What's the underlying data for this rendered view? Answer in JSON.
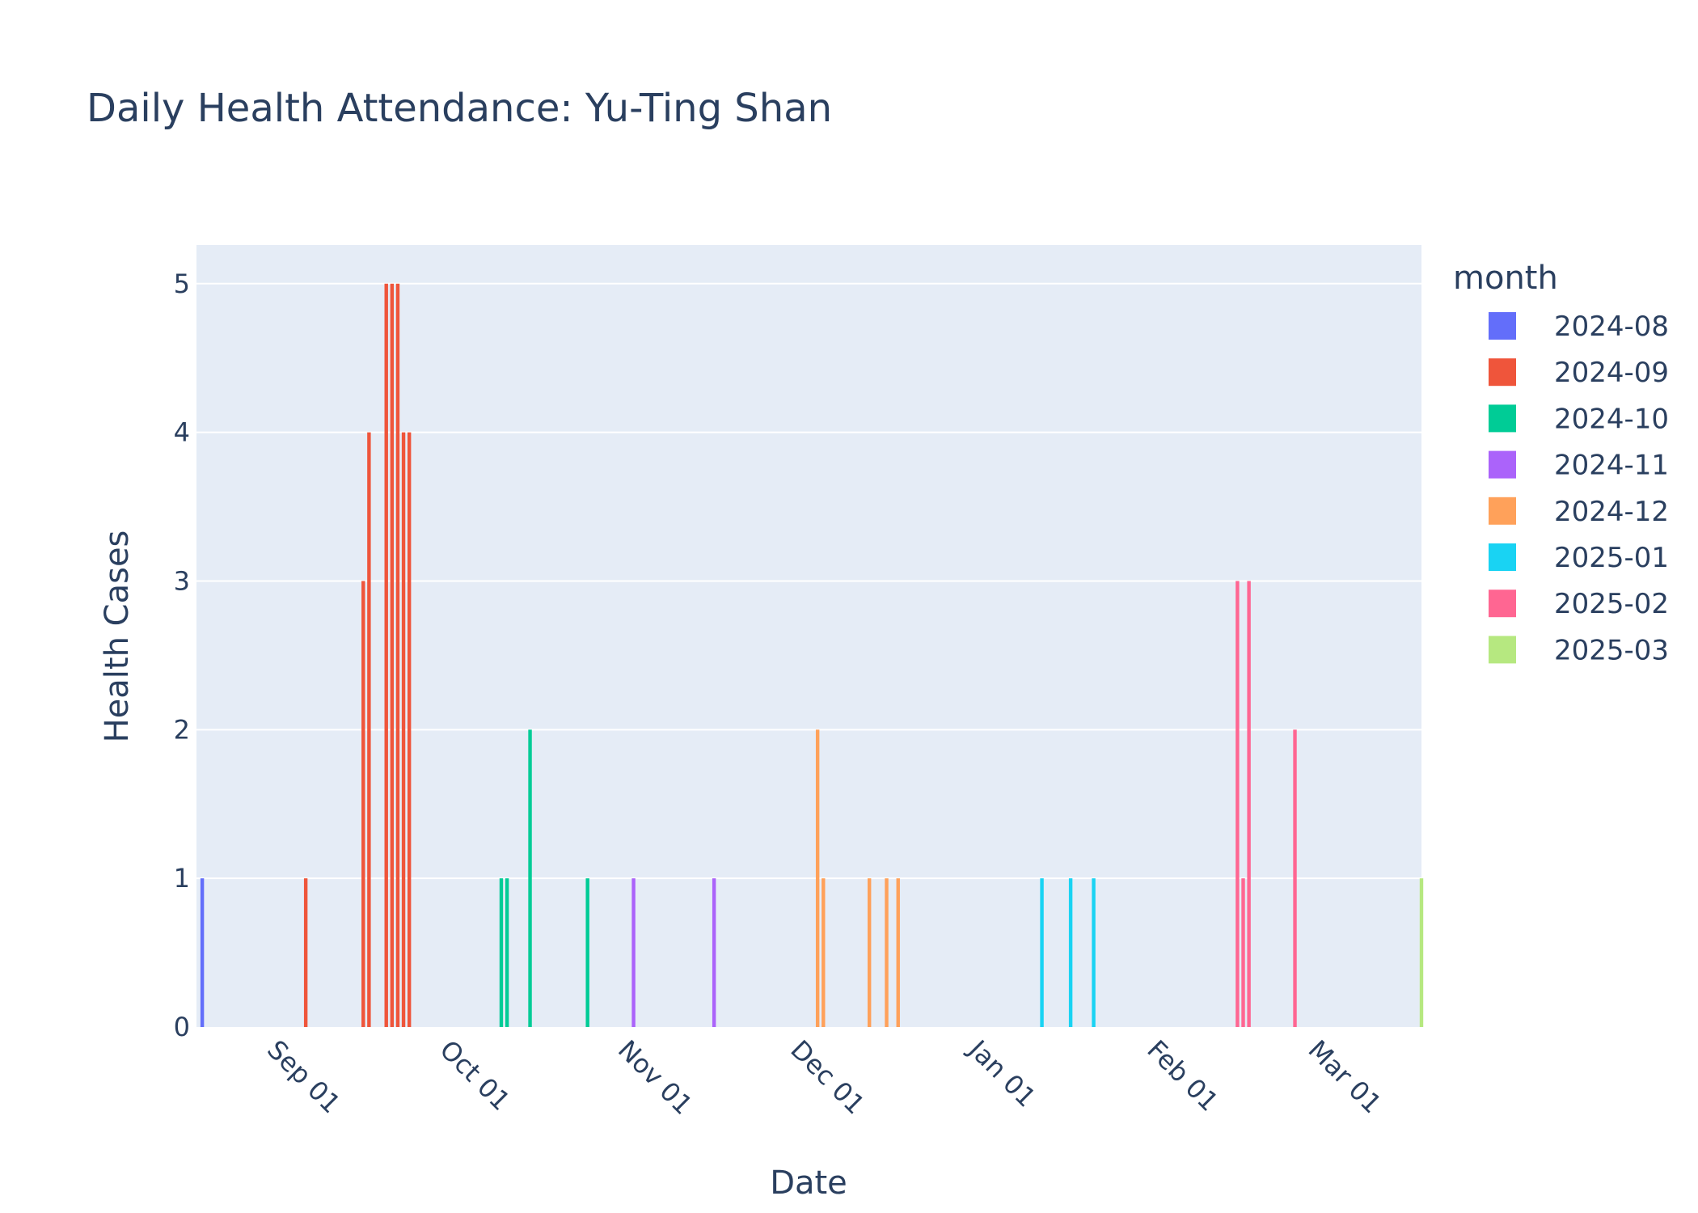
{
  "chart_data": {
    "type": "bar",
    "title": "Daily Health Attendance: Yu-Ting Shan",
    "xlabel": "Date",
    "ylabel": "Health Cases",
    "xlim": [
      "2024-08-16",
      "2025-03-17"
    ],
    "ylim": [
      0,
      5.26
    ],
    "y_ticks": [
      0,
      1,
      2,
      3,
      4,
      5
    ],
    "x_ticks": [
      {
        "date": "2024-09-01",
        "label": "Sep 01"
      },
      {
        "date": "2024-10-01",
        "label": "Oct 01"
      },
      {
        "date": "2024-11-01",
        "label": "Nov 01"
      },
      {
        "date": "2024-12-01",
        "label": "Dec 01"
      },
      {
        "date": "2025-01-01",
        "label": "Jan 01"
      },
      {
        "date": "2025-02-01",
        "label": "Feb 01"
      },
      {
        "date": "2025-03-01",
        "label": "Mar 01"
      }
    ],
    "grid": true,
    "legend": {
      "title": "month",
      "placement": "right"
    },
    "series": [
      {
        "name": "2024-08",
        "color": "#636efa",
        "points": [
          [
            "2024-08-17",
            1
          ]
        ]
      },
      {
        "name": "2024-09",
        "color": "#EF553B",
        "points": [
          [
            "2024-09-04",
            1
          ],
          [
            "2024-09-14",
            3
          ],
          [
            "2024-09-15",
            4
          ],
          [
            "2024-09-18",
            5
          ],
          [
            "2024-09-19",
            5
          ],
          [
            "2024-09-20",
            5
          ],
          [
            "2024-09-21",
            4
          ],
          [
            "2024-09-22",
            4
          ]
        ]
      },
      {
        "name": "2024-10",
        "color": "#00cc96",
        "points": [
          [
            "2024-10-08",
            1
          ],
          [
            "2024-10-09",
            1
          ],
          [
            "2024-10-13",
            2
          ],
          [
            "2024-10-23",
            1
          ]
        ]
      },
      {
        "name": "2024-11",
        "color": "#ab63fa",
        "points": [
          [
            "2024-10-31",
            1
          ],
          [
            "2024-11-14",
            1
          ]
        ]
      },
      {
        "name": "2024-12",
        "color": "#FFA15A",
        "points": [
          [
            "2024-12-02",
            2
          ],
          [
            "2024-12-03",
            1
          ],
          [
            "2024-12-11",
            1
          ],
          [
            "2024-12-14",
            1
          ],
          [
            "2024-12-16",
            1
          ]
        ]
      },
      {
        "name": "2025-01",
        "color": "#19d3f3",
        "points": [
          [
            "2025-01-10",
            1
          ],
          [
            "2025-01-15",
            1
          ],
          [
            "2025-01-19",
            1
          ]
        ]
      },
      {
        "name": "2025-02",
        "color": "#FF6692",
        "points": [
          [
            "2025-02-13",
            3
          ],
          [
            "2025-02-14",
            1
          ],
          [
            "2025-02-15",
            3
          ],
          [
            "2025-02-23",
            2
          ]
        ]
      },
      {
        "name": "2025-03",
        "color": "#B6E880",
        "points": [
          [
            "2025-03-17",
            1
          ]
        ]
      }
    ]
  }
}
